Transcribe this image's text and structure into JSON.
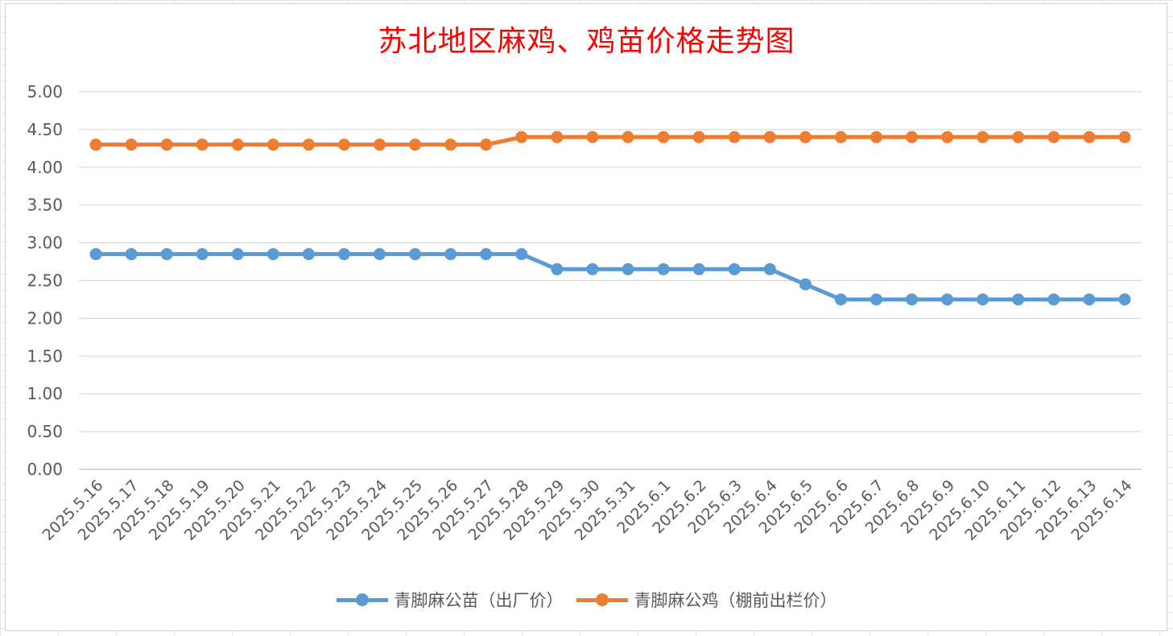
{
  "chart_data": {
    "type": "line",
    "title": "苏北地区麻鸡、鸡苗价格走势图",
    "title_color": "#FF0000",
    "xlabel": "",
    "ylabel": "",
    "ylim": [
      0,
      5
    ],
    "ytick_step": 0.5,
    "grid": true,
    "legend_position": "bottom",
    "categories": [
      "2025.5.16",
      "2025.5.17",
      "2025.5.18",
      "2025.5.19",
      "2025.5.20",
      "2025.5.21",
      "2025.5.22",
      "2025.5.23",
      "2025.5.24",
      "2025.5.25",
      "2025.5.26",
      "2025.5.27",
      "2025.5.28",
      "2025.5.29",
      "2025.5.30",
      "2025.5.31",
      "2025.6.1",
      "2025.6.2",
      "2025.6.3",
      "2025.6.4",
      "2025.6.5",
      "2025.6.6",
      "2025.6.7",
      "2025.6.8",
      "2025.6.9",
      "2025.6.10",
      "2025.6.11",
      "2025.6.12",
      "2025.6.13",
      "2025.6.14"
    ],
    "series": [
      {
        "name": "青脚麻公苗（出厂价）",
        "color": "#5B9BD5",
        "values": [
          2.85,
          2.85,
          2.85,
          2.85,
          2.85,
          2.85,
          2.85,
          2.85,
          2.85,
          2.85,
          2.85,
          2.85,
          2.85,
          2.65,
          2.65,
          2.65,
          2.65,
          2.65,
          2.65,
          2.65,
          2.45,
          2.25,
          2.25,
          2.25,
          2.25,
          2.25,
          2.25,
          2.25,
          2.25,
          2.25
        ]
      },
      {
        "name": "青脚麻公鸡（棚前出栏价）",
        "color": "#ED7D31",
        "values": [
          4.3,
          4.3,
          4.3,
          4.3,
          4.3,
          4.3,
          4.3,
          4.3,
          4.3,
          4.3,
          4.3,
          4.3,
          4.4,
          4.4,
          4.4,
          4.4,
          4.4,
          4.4,
          4.4,
          4.4,
          4.4,
          4.4,
          4.4,
          4.4,
          4.4,
          4.4,
          4.4,
          4.4,
          4.4,
          4.4
        ]
      }
    ]
  }
}
